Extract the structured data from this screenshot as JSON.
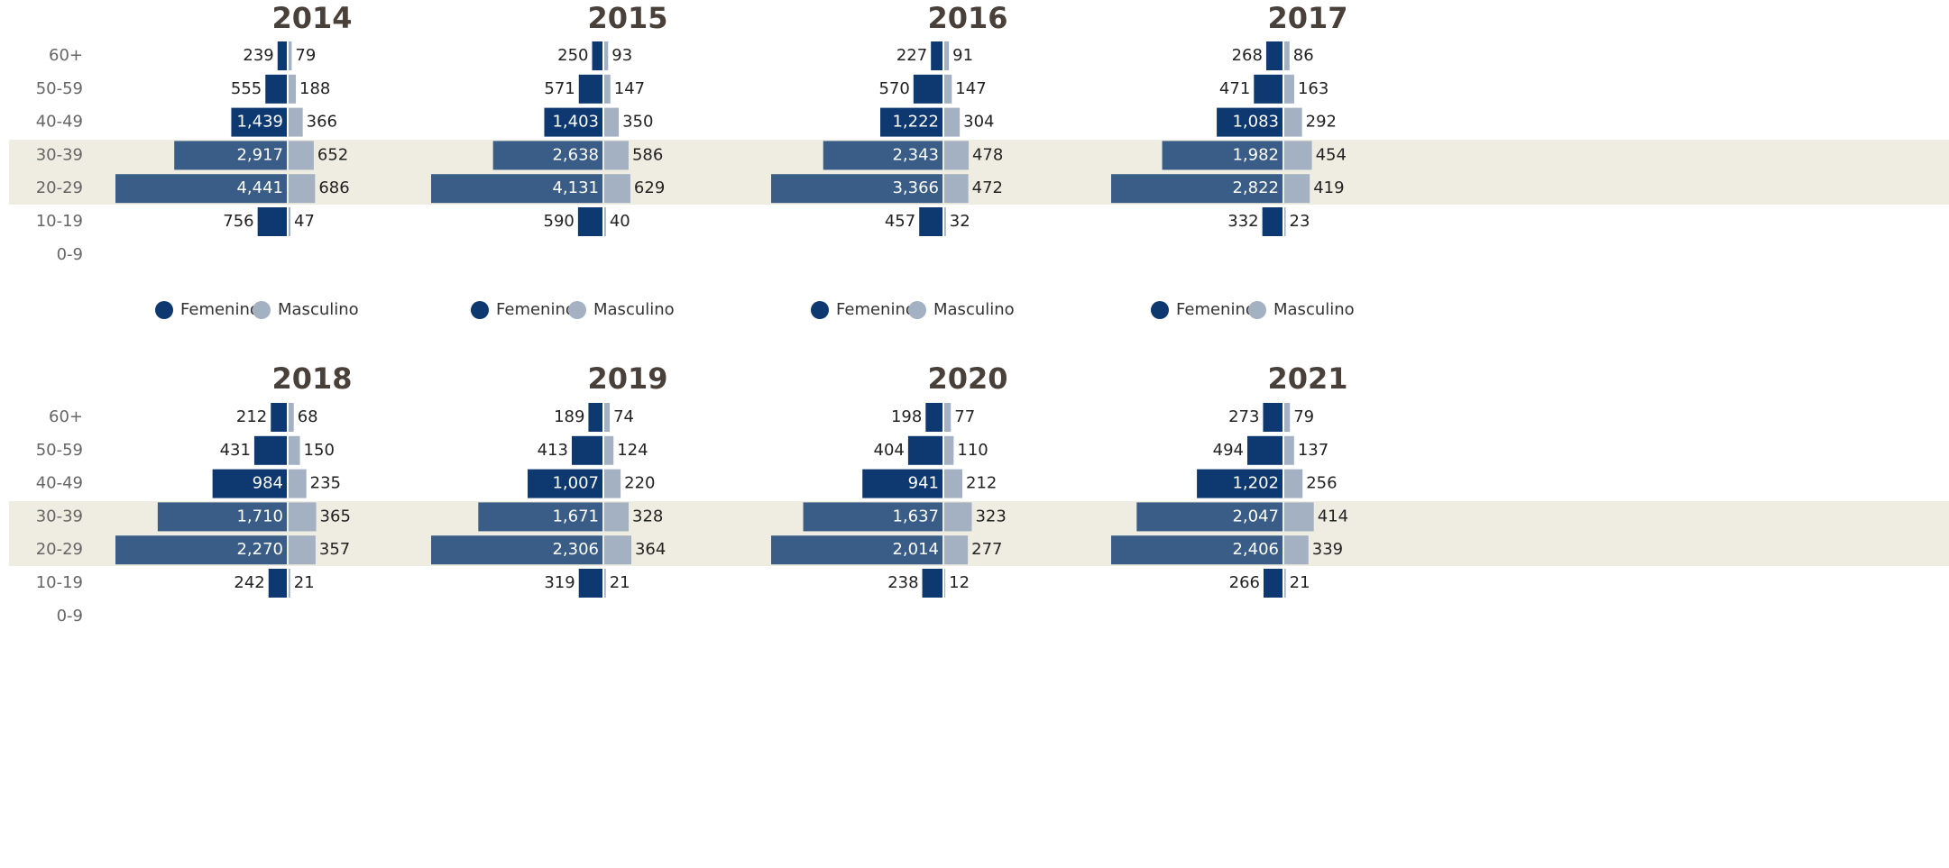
{
  "chart_data": [
    {
      "type": "bar",
      "title": "2014",
      "categories": [
        "60+",
        "50-59",
        "40-49",
        "30-39",
        "20-29",
        "10-19",
        "0-9"
      ],
      "series": [
        {
          "name": "Femenino",
          "color": "#0d3870",
          "values": [
            239,
            555,
            1439,
            2917,
            4441,
            756,
            null
          ],
          "value_labels": [
            "239",
            "555",
            "1,439",
            "2,917",
            "4,441",
            "756",
            null
          ]
        },
        {
          "name": "Masculino",
          "color": "#a3b1c2",
          "values": [
            79,
            188,
            366,
            652,
            686,
            47,
            null
          ]
        }
      ]
    },
    {
      "type": "bar",
      "title": "2015",
      "series": [
        {
          "name": "Femenino",
          "color": "#0d3870",
          "values": [
            250,
            571,
            1403,
            2638,
            4131,
            590,
            null
          ],
          "value_labels": [
            "250",
            "571",
            "1,403",
            "2,638",
            "4,131",
            "590",
            null
          ]
        },
        {
          "name": "Masculino",
          "color": "#a3b1c2",
          "values": [
            93,
            147,
            350,
            586,
            629,
            40,
            null
          ]
        }
      ]
    },
    {
      "type": "bar",
      "title": "2016",
      "series": [
        {
          "name": "Femenino",
          "color": "#0d3870",
          "values": [
            227,
            570,
            1222,
            2343,
            3366,
            457,
            null
          ],
          "value_labels": [
            "227",
            "570",
            "1,222",
            "2,343",
            "3,366",
            "457",
            null
          ]
        },
        {
          "name": "Masculino",
          "color": "#a3b1c2",
          "values": [
            91,
            147,
            304,
            478,
            472,
            32,
            null
          ]
        }
      ]
    },
    {
      "type": "bar",
      "title": "2017",
      "series": [
        {
          "name": "Femenino",
          "color": "#0d3870",
          "values": [
            268,
            471,
            1083,
            1982,
            2822,
            332,
            null
          ],
          "value_labels": [
            "268",
            "471",
            "1,083",
            "1,982",
            "2,822",
            "332",
            null
          ]
        },
        {
          "name": "Masculino",
          "color": "#a3b1c2",
          "values": [
            86,
            163,
            292,
            454,
            419,
            23,
            null
          ]
        }
      ]
    },
    {
      "type": "bar",
      "title": "2018",
      "categories": [
        "60+",
        "50-59",
        "40-49",
        "30-39",
        "20-29",
        "10-19",
        "0-9"
      ],
      "series": [
        {
          "color": "#0d3870",
          "values": [
            212,
            431,
            984,
            1710,
            2270,
            242,
            null
          ],
          "value_labels": [
            "212",
            "431",
            "984",
            "1,710",
            "2,270",
            "242",
            null
          ]
        },
        {
          "color": "#a3b1c2",
          "values": [
            68,
            150,
            235,
            365,
            357,
            21,
            null
          ]
        }
      ]
    },
    {
      "type": "bar",
      "title": "2019",
      "series": [
        {
          "color": "#0d3870",
          "values": [
            189,
            413,
            1007,
            1671,
            2306,
            319,
            null
          ],
          "value_labels": [
            "189",
            "413",
            "1,007",
            "1,671",
            "2,306",
            "319",
            null
          ]
        },
        {
          "color": "#a3b1c2",
          "values": [
            74,
            124,
            220,
            328,
            364,
            21,
            null
          ]
        }
      ]
    },
    {
      "type": "bar",
      "title": "2020",
      "series": [
        {
          "color": "#0d3870",
          "values": [
            198,
            404,
            941,
            1637,
            2014,
            238,
            null
          ],
          "value_labels": [
            "198",
            "404",
            "941",
            "1,637",
            "2,014",
            "238",
            null
          ]
        },
        {
          "color": "#a3b1c2",
          "values": [
            77,
            110,
            212,
            323,
            277,
            12,
            null
          ]
        }
      ]
    },
    {
      "type": "bar",
      "title": "2021",
      "series": [
        {
          "color": "#0d3870",
          "values": [
            273,
            494,
            1202,
            2047,
            2406,
            266,
            null
          ],
          "value_labels": [
            "273",
            "494",
            "1,202",
            "2,047",
            "2,406",
            "266",
            null
          ]
        },
        {
          "color": "#a3b1c2",
          "values": [
            79,
            137,
            256,
            414,
            339,
            21,
            null
          ]
        }
      ]
    }
  ]
}
